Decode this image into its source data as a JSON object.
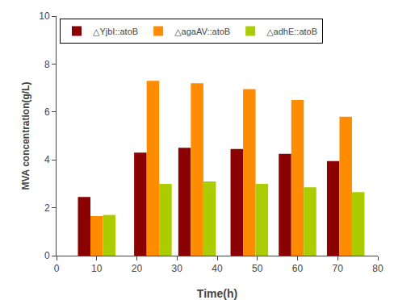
{
  "chart_data": {
    "type": "bar",
    "x": [
      10,
      24,
      35,
      48,
      60,
      72
    ],
    "series": [
      {
        "name": "△YjbI::atoB",
        "color": "#8B0000",
        "values": [
          2.45,
          4.3,
          4.5,
          4.45,
          4.25,
          3.95
        ]
      },
      {
        "name": "△agaAV::atoB",
        "color": "#FF8C00",
        "values": [
          1.65,
          7.3,
          7.2,
          6.95,
          6.5,
          5.8
        ]
      },
      {
        "name": "△adhE::atoB",
        "color": "#AACC00",
        "values": [
          1.7,
          3.0,
          3.1,
          3.0,
          2.85,
          2.65
        ]
      }
    ],
    "xlabel": "Time(h)",
    "ylabel": "MVA concentration(g/L)",
    "xlim": [
      0,
      80
    ],
    "ylim": [
      0,
      10
    ],
    "xticks": [
      0,
      10,
      20,
      30,
      40,
      50,
      60,
      70,
      80
    ],
    "yticks": [
      0,
      2,
      4,
      6,
      8,
      10
    ],
    "legend": "upper left",
    "grid": false
  }
}
